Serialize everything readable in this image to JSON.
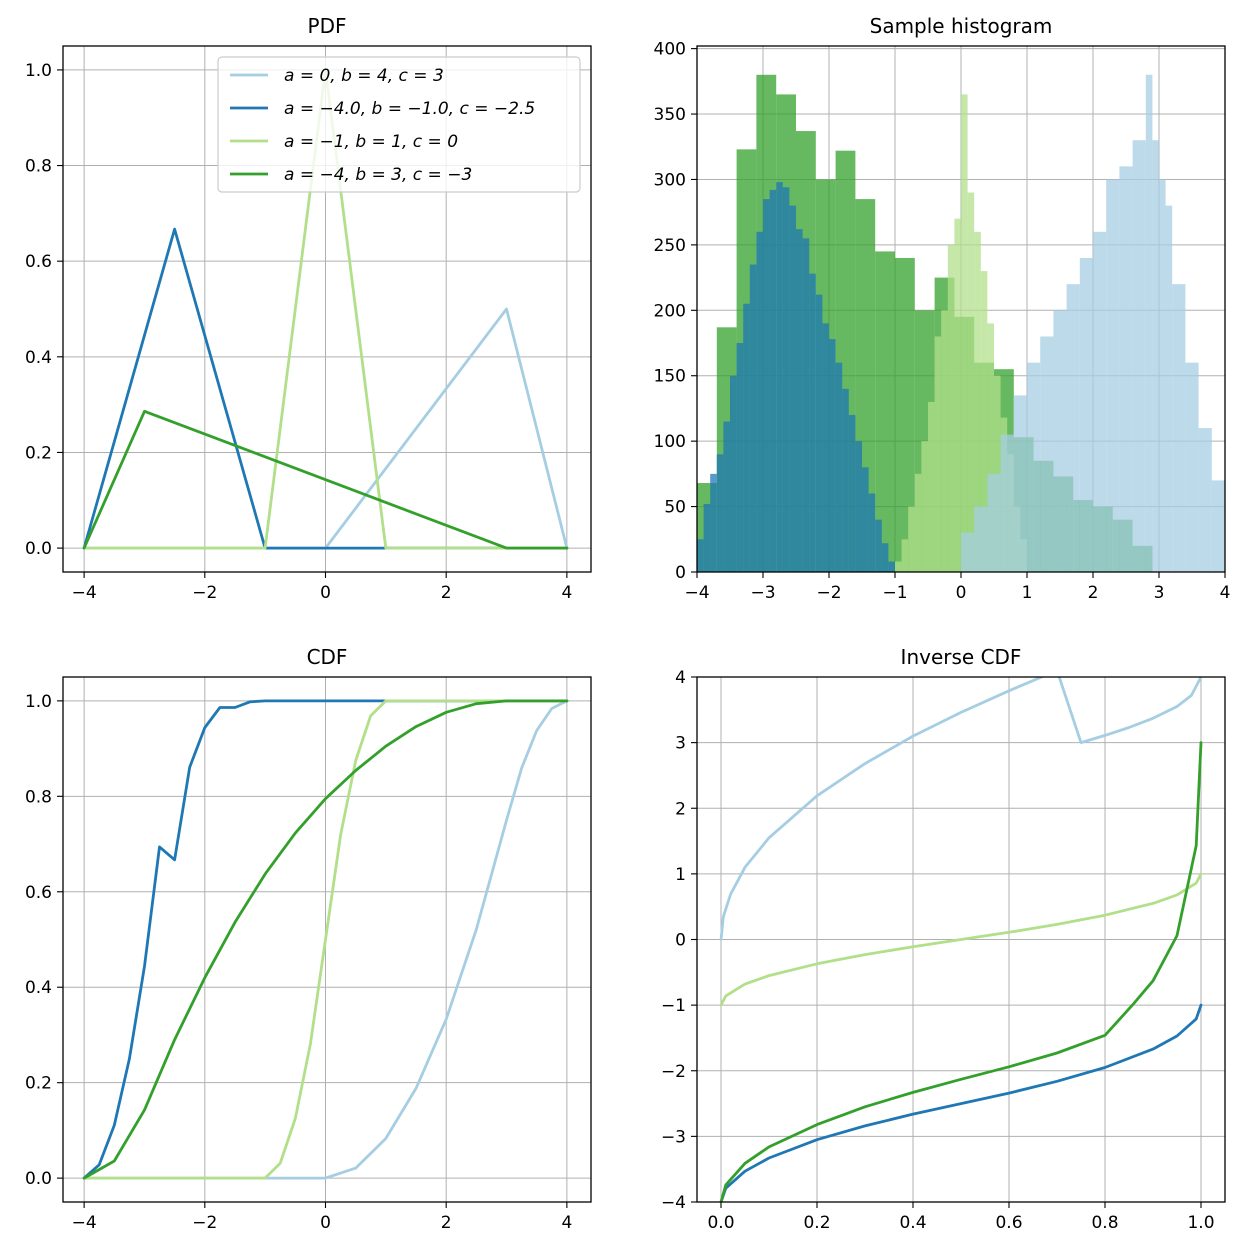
{
  "colors": {
    "series1": "#a6cee3",
    "series2": "#1f78b4",
    "series3": "#b2df8a",
    "series4": "#33a02c",
    "grid": "#b0b0b0"
  },
  "chart_data": [
    {
      "type": "line",
      "title": "PDF",
      "xlabel": "",
      "ylabel": "",
      "xlim": [
        -4.35,
        4.4
      ],
      "ylim": [
        -0.05,
        1.05
      ],
      "xticks": [
        -4,
        -2,
        0,
        2,
        4
      ],
      "xtick_labels": [
        "−4",
        "−2",
        "0",
        "2",
        "4"
      ],
      "yticks": [
        0,
        0.2,
        0.4,
        0.6,
        0.8,
        1.0
      ],
      "ytick_labels": [
        "0.0",
        "0.2",
        "0.4",
        "0.6",
        "0.8",
        "1.0"
      ],
      "grid": true,
      "legend_position": "top-right",
      "series": [
        {
          "name": "a = 0, b = 4, c = 3",
          "color": "#a6cee3",
          "x": [
            -4,
            0,
            3,
            4
          ],
          "y": [
            0,
            0,
            0.5,
            0
          ]
        },
        {
          "name": "a = −4.0, b = −1.0, c = −2.5",
          "color": "#1f78b4",
          "x": [
            -4,
            -2.5,
            -1,
            4
          ],
          "y": [
            0,
            0.667,
            0,
            0
          ]
        },
        {
          "name": "a = −1, b = 1, c = 0",
          "color": "#b2df8a",
          "x": [
            -4,
            -1,
            0,
            1,
            4
          ],
          "y": [
            0,
            0,
            1.0,
            0,
            0
          ]
        },
        {
          "name": "a = −4, b = 3, c = −3",
          "color": "#33a02c",
          "x": [
            -4,
            -3,
            3,
            4
          ],
          "y": [
            0,
            0.286,
            0,
            0
          ]
        }
      ]
    },
    {
      "type": "bar",
      "title": "Sample histogram",
      "xlabel": "",
      "ylabel": "",
      "xlim": [
        -4,
        4
      ],
      "ylim": [
        0,
        402
      ],
      "xticks": [
        -4,
        -3,
        -2,
        -1,
        0,
        1,
        2,
        3,
        4
      ],
      "xtick_labels": [
        "−4",
        "−3",
        "−2",
        "−1",
        "0",
        "1",
        "2",
        "3",
        "4"
      ],
      "yticks": [
        0,
        50,
        100,
        150,
        200,
        250,
        300,
        350,
        400
      ],
      "ytick_labels": [
        "0",
        "50",
        "100",
        "150",
        "200",
        "250",
        "300",
        "350",
        "400"
      ],
      "grid": true,
      "series": [
        {
          "color": "#33a02c",
          "bins": [
            -4.0,
            -3.7,
            -3.4,
            -3.1,
            -2.8,
            -2.5,
            -2.2,
            -1.9,
            -1.6,
            -1.3,
            -1.0,
            -0.7,
            -0.4,
            -0.1,
            0.2,
            0.5,
            0.8,
            1.1,
            1.4,
            1.7,
            2.0,
            2.3,
            2.6,
            2.9
          ],
          "values": [
            68,
            187,
            323,
            380,
            365,
            337,
            300,
            322,
            285,
            245,
            240,
            200,
            225,
            195,
            160,
            155,
            103,
            85,
            73,
            55,
            50,
            40,
            20
          ]
        },
        {
          "color": "#1f78b4",
          "bins": [
            -4.0,
            -3.9,
            -3.8,
            -3.7,
            -3.6,
            -3.5,
            -3.4,
            -3.3,
            -3.2,
            -3.1,
            -3.0,
            -2.9,
            -2.8,
            -2.7,
            -2.6,
            -2.5,
            -2.4,
            -2.3,
            -2.2,
            -2.1,
            -2.0,
            -1.9,
            -1.8,
            -1.7,
            -1.6,
            -1.5,
            -1.4,
            -1.3,
            -1.2,
            -1.1,
            -1.0
          ],
          "values": [
            25,
            52,
            75,
            90,
            115,
            150,
            175,
            205,
            235,
            260,
            285,
            292,
            298,
            294,
            280,
            262,
            255,
            228,
            212,
            190,
            178,
            160,
            140,
            120,
            100,
            80,
            60,
            40,
            22,
            8
          ]
        },
        {
          "color": "#b2df8a",
          "bins": [
            -1.0,
            -0.9,
            -0.8,
            -0.7,
            -0.6,
            -0.5,
            -0.4,
            -0.3,
            -0.2,
            -0.1,
            0.0,
            0.1,
            0.2,
            0.3,
            0.4,
            0.5,
            0.6,
            0.7,
            0.8,
            0.9,
            1.0
          ],
          "values": [
            8,
            25,
            50,
            75,
            100,
            130,
            180,
            200,
            250,
            270,
            365,
            290,
            260,
            230,
            190,
            150,
            118,
            90,
            50,
            25
          ]
        },
        {
          "color": "#a6cee3",
          "bins": [
            0.0,
            0.2,
            0.4,
            0.6,
            0.8,
            1.0,
            1.2,
            1.4,
            1.6,
            1.8,
            2.0,
            2.2,
            2.4,
            2.6,
            2.8,
            2.9,
            3.0,
            3.1,
            3.2,
            3.4,
            3.6,
            3.8,
            4.0
          ],
          "values": [
            30,
            50,
            75,
            105,
            135,
            160,
            180,
            200,
            220,
            240,
            260,
            300,
            310,
            330,
            380,
            330,
            300,
            280,
            220,
            160,
            110,
            70
          ]
        }
      ]
    },
    {
      "type": "line",
      "title": "CDF",
      "xlabel": "",
      "ylabel": "",
      "xlim": [
        -4.35,
        4.4
      ],
      "ylim": [
        -0.05,
        1.05
      ],
      "xticks": [
        -4,
        -2,
        0,
        2,
        4
      ],
      "xtick_labels": [
        "−4",
        "−2",
        "0",
        "2",
        "4"
      ],
      "yticks": [
        0,
        0.2,
        0.4,
        0.6,
        0.8,
        1.0
      ],
      "ytick_labels": [
        "0.0",
        "0.2",
        "0.4",
        "0.6",
        "0.8",
        "1.0"
      ],
      "grid": true,
      "series": [
        {
          "color": "#a6cee3",
          "x": [
            -4,
            0,
            0.5,
            1,
            1.5,
            2,
            2.5,
            3,
            3.25,
            3.5,
            3.75,
            4
          ],
          "y": [
            0,
            0,
            0.021,
            0.083,
            0.188,
            0.333,
            0.521,
            0.75,
            0.859,
            0.938,
            0.984,
            1.0
          ]
        },
        {
          "color": "#1f78b4",
          "x": [
            -4,
            -3.75,
            -3.5,
            -3.25,
            -3,
            -2.75,
            -2.5,
            -2.25,
            -2,
            -1.75,
            -1.5,
            -1.25,
            -1,
            4
          ],
          "y": [
            0,
            0.028,
            0.111,
            0.25,
            0.444,
            0.694,
            0.667,
            0.861,
            0.944,
            0.986,
            0.986,
            0.998,
            1.0,
            1.0
          ]
        },
        {
          "color": "#b2df8a",
          "x": [
            -4,
            -1,
            -0.75,
            -0.5,
            -0.25,
            0,
            0.25,
            0.5,
            0.75,
            1,
            4
          ],
          "y": [
            0,
            0,
            0.031,
            0.125,
            0.281,
            0.5,
            0.719,
            0.875,
            0.969,
            1.0,
            1.0
          ]
        },
        {
          "color": "#33a02c",
          "x": [
            -4,
            -3.5,
            -3,
            -2.5,
            -2,
            -1.5,
            -1,
            -0.5,
            0,
            0.5,
            1,
            1.5,
            2,
            2.5,
            3,
            4
          ],
          "y": [
            0,
            0.036,
            0.143,
            0.29,
            0.42,
            0.536,
            0.637,
            0.723,
            0.795,
            0.854,
            0.905,
            0.946,
            0.976,
            0.994,
            1.0,
            1.0
          ]
        }
      ]
    },
    {
      "type": "line",
      "title": "Inverse CDF",
      "xlabel": "",
      "ylabel": "",
      "xlim": [
        -0.05,
        1.05
      ],
      "ylim": [
        -4,
        4
      ],
      "xticks": [
        0,
        0.2,
        0.4,
        0.6,
        0.8,
        1.0
      ],
      "xtick_labels": [
        "0.0",
        "0.2",
        "0.4",
        "0.6",
        "0.8",
        "1.0"
      ],
      "yticks": [
        -4,
        -3,
        -2,
        -1,
        0,
        1,
        2,
        3,
        4
      ],
      "ytick_labels": [
        "−4",
        "−3",
        "−2",
        "−1",
        "0",
        "1",
        "2",
        "3",
        "4"
      ],
      "grid": true,
      "series": [
        {
          "color": "#a6cee3",
          "x": [
            0,
            0.005,
            0.02,
            0.05,
            0.1,
            0.2,
            0.3,
            0.4,
            0.5,
            0.6,
            0.7,
            0.75,
            0.8,
            0.85,
            0.9,
            0.95,
            0.98,
            1.0
          ],
          "y": [
            0,
            0.35,
            0.69,
            1.1,
            1.55,
            2.19,
            2.68,
            3.1,
            3.46,
            3.79,
            4.1,
            3.0,
            3.11,
            3.23,
            3.37,
            3.55,
            3.72,
            4.0
          ]
        },
        {
          "color": "#1f78b4",
          "x": [
            0,
            0.01,
            0.05,
            0.1,
            0.2,
            0.3,
            0.4,
            0.5,
            0.6,
            0.7,
            0.8,
            0.9,
            0.95,
            0.99,
            1.0
          ],
          "y": [
            -4,
            -3.79,
            -3.53,
            -3.33,
            -3.05,
            -2.84,
            -2.66,
            -2.5,
            -2.34,
            -2.16,
            -1.95,
            -1.67,
            -1.47,
            -1.21,
            -1.0
          ]
        },
        {
          "color": "#b2df8a",
          "x": [
            0,
            0.01,
            0.05,
            0.1,
            0.2,
            0.3,
            0.4,
            0.5,
            0.6,
            0.7,
            0.8,
            0.9,
            0.95,
            0.99,
            1.0
          ],
          "y": [
            -1,
            -0.86,
            -0.68,
            -0.55,
            -0.37,
            -0.23,
            -0.11,
            0,
            0.11,
            0.23,
            0.37,
            0.55,
            0.68,
            0.86,
            1.0
          ]
        },
        {
          "color": "#33a02c",
          "x": [
            0,
            0.01,
            0.05,
            0.1,
            0.2,
            0.3,
            0.4,
            0.5,
            0.6,
            0.7,
            0.8,
            0.857,
            0.9,
            0.95,
            0.99,
            1.0
          ],
          "y": [
            -4,
            -3.74,
            -3.41,
            -3.16,
            -2.82,
            -2.55,
            -2.33,
            -2.13,
            -1.94,
            -1.73,
            -1.46,
            -1.0,
            -0.63,
            0.06,
            1.43,
            3.0
          ]
        }
      ]
    }
  ]
}
